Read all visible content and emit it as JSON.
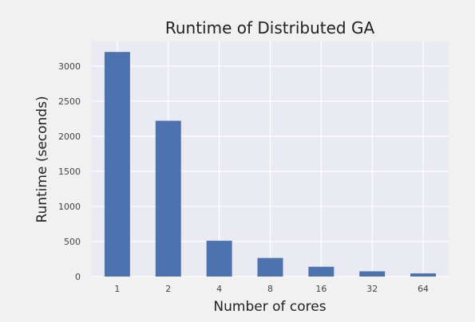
{
  "chart_data": {
    "type": "bar",
    "title": "Runtime of Distributed GA",
    "xlabel": "Number of cores",
    "ylabel": "Runtime (seconds)",
    "categories": [
      "1",
      "2",
      "4",
      "8",
      "16",
      "32",
      "64"
    ],
    "values": [
      3200,
      2220,
      510,
      265,
      140,
      75,
      45
    ],
    "ylim": [
      0,
      3350
    ],
    "yticks": [
      0,
      500,
      1000,
      1500,
      2000,
      2500,
      3000
    ],
    "grid": true,
    "legend": "none",
    "colors": {
      "bar": "#4c72b0",
      "plot_background": "#eaeaf2",
      "page_background": "#f1f1f1",
      "grid": "#ffffff"
    }
  }
}
